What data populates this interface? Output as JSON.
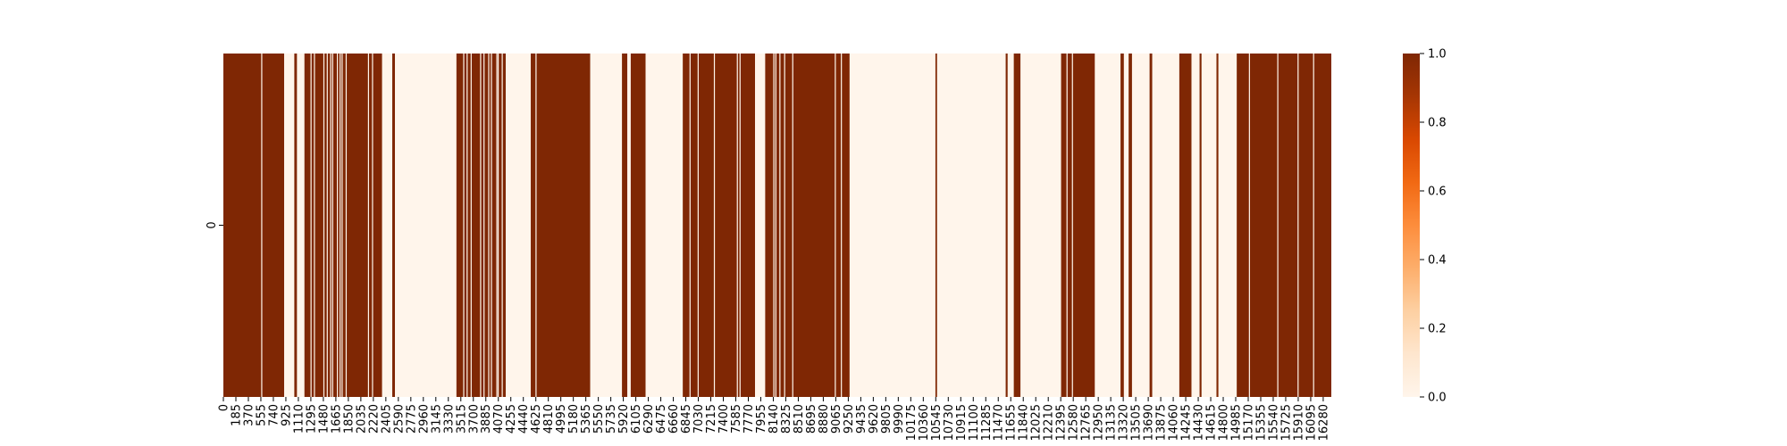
{
  "chart_data": {
    "type": "heatmap",
    "title": "",
    "xlabel": "",
    "ylabel": "",
    "rows": [
      "0"
    ],
    "x_range": [
      0,
      16400
    ],
    "value_range": [
      0,
      1
    ],
    "colormap": "Oranges",
    "colors": {
      "low": "#fff5eb",
      "high": "#7f2704"
    },
    "x_tick_labels": [
      "0",
      "185",
      "370",
      "555",
      "740",
      "925",
      "1110",
      "1295",
      "1480",
      "1665",
      "1850",
      "2035",
      "2220",
      "2405",
      "2590",
      "2775",
      "2960",
      "3145",
      "3330",
      "3515",
      "3700",
      "3885",
      "4070",
      "4255",
      "4440",
      "4625",
      "4810",
      "4995",
      "5180",
      "5365",
      "5550",
      "5735",
      "5920",
      "6105",
      "6290",
      "6475",
      "6660",
      "6845",
      "7030",
      "7215",
      "7400",
      "7585",
      "7770",
      "7955",
      "8140",
      "8325",
      "8510",
      "8695",
      "8880",
      "9065",
      "9250",
      "9435",
      "9620",
      "9805",
      "9990",
      "10175",
      "10360",
      "10545",
      "10730",
      "10915",
      "11100",
      "11285",
      "11470",
      "11655",
      "11840",
      "12025",
      "12210",
      "12395",
      "12580",
      "12765",
      "12950",
      "13135",
      "13320",
      "13505",
      "13690",
      "13875",
      "14060",
      "14245",
      "14430",
      "14615",
      "14800",
      "14985",
      "15170",
      "15355",
      "15540",
      "15725",
      "15910",
      "16095",
      "16280"
    ],
    "y_tick_labels": [
      "0"
    ],
    "colorbar_ticks": [
      {
        "value": 0.0,
        "label": "0.0"
      },
      {
        "value": 0.2,
        "label": "0.2"
      },
      {
        "value": 0.4,
        "label": "0.4"
      },
      {
        "value": 0.6,
        "label": "0.6"
      },
      {
        "value": 0.8,
        "label": "0.8"
      },
      {
        "value": 1.0,
        "label": "1.0"
      }
    ],
    "segments": [
      [
        0,
        900,
        1
      ],
      [
        900,
        1050,
        0
      ],
      [
        1050,
        1090,
        1
      ],
      [
        1090,
        1200,
        0
      ],
      [
        1200,
        2350,
        1
      ],
      [
        2350,
        2500,
        0
      ],
      [
        2500,
        2540,
        1
      ],
      [
        2540,
        3450,
        0
      ],
      [
        3450,
        4180,
        1
      ],
      [
        4180,
        4550,
        0
      ],
      [
        4550,
        5430,
        1
      ],
      [
        5430,
        5900,
        0
      ],
      [
        5900,
        5980,
        1
      ],
      [
        5980,
        6030,
        0
      ],
      [
        6030,
        6250,
        1
      ],
      [
        6250,
        6800,
        0
      ],
      [
        6800,
        7870,
        1
      ],
      [
        7870,
        8020,
        0
      ],
      [
        8020,
        9270,
        1
      ],
      [
        9270,
        10540,
        0
      ],
      [
        10540,
        10565,
        1
      ],
      [
        10565,
        11580,
        0
      ],
      [
        11580,
        11610,
        1
      ],
      [
        11610,
        11700,
        0
      ],
      [
        11700,
        11800,
        1
      ],
      [
        11800,
        12400,
        0
      ],
      [
        12400,
        12900,
        1
      ],
      [
        12900,
        13280,
        0
      ],
      [
        13280,
        13330,
        1
      ],
      [
        13330,
        13400,
        0
      ],
      [
        13400,
        13450,
        1
      ],
      [
        13450,
        13710,
        0
      ],
      [
        13710,
        13750,
        1
      ],
      [
        13750,
        14150,
        0
      ],
      [
        14150,
        14330,
        1
      ],
      [
        14330,
        14450,
        0
      ],
      [
        14450,
        14480,
        1
      ],
      [
        14480,
        14700,
        0
      ],
      [
        14700,
        14730,
        1
      ],
      [
        14730,
        15000,
        0
      ],
      [
        15000,
        16400,
        1
      ]
    ],
    "thin_gaps": [
      560,
      1290,
      1340,
      1480,
      1530,
      1580,
      1610,
      1680,
      1720,
      1750,
      1810,
      2140,
      2200,
      3550,
      3600,
      3660,
      3800,
      3850,
      3920,
      3960,
      4040,
      4060,
      4120,
      4620,
      6900,
      7020,
      7260,
      7600,
      7640,
      8140,
      8170,
      8230,
      8300,
      8420,
      9050,
      9140,
      12480,
      12560,
      15180,
      15600,
      15900,
      16130
    ]
  }
}
